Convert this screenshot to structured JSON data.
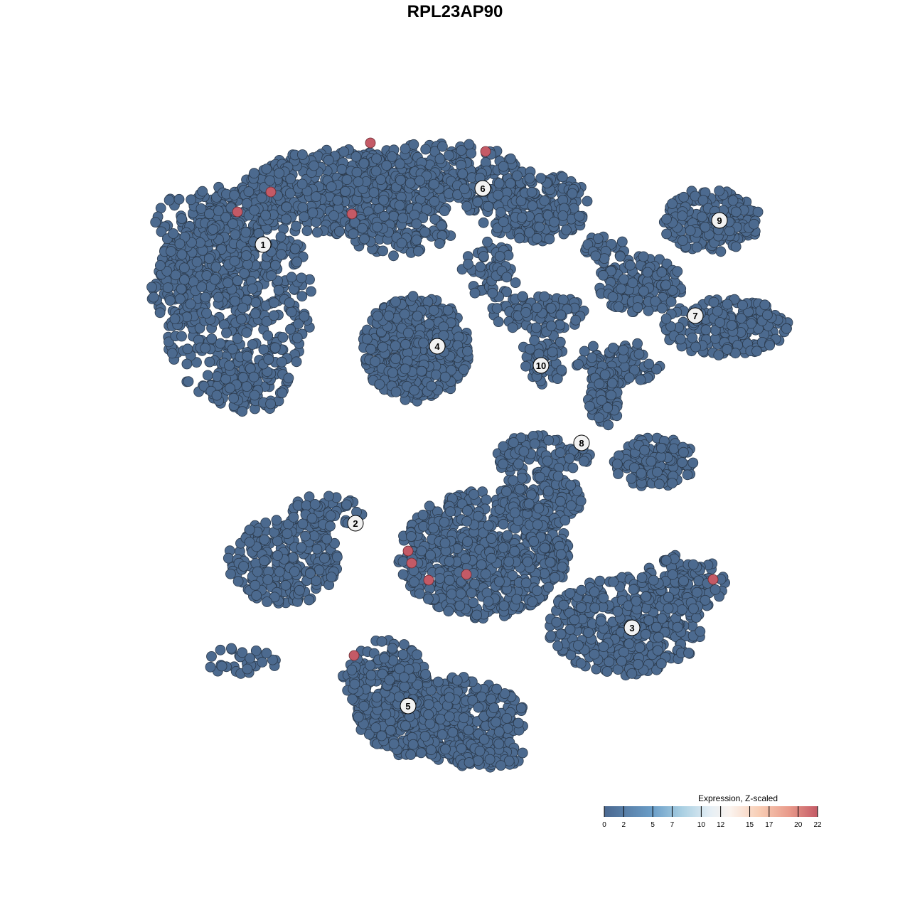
{
  "chart_data": {
    "type": "scatter",
    "title": "RPL23AP90",
    "xlabel": "",
    "ylabel": "",
    "grid": false,
    "axes_visible": false,
    "point_color_low": "#4c6a8f",
    "point_color_high": "#c45a66",
    "clusters": [
      {
        "label": "1",
        "x": -27.0,
        "y": 29.6
      },
      {
        "label": "2",
        "x": -14.0,
        "y": -9.6
      },
      {
        "label": "3",
        "x": 24.9,
        "y": -24.3
      },
      {
        "label": "4",
        "x": -2.5,
        "y": 15.3
      },
      {
        "label": "5",
        "x": -6.6,
        "y": -35.3
      },
      {
        "label": "6",
        "x": 3.9,
        "y": 37.5
      },
      {
        "label": "7",
        "x": 33.8,
        "y": 19.6
      },
      {
        "label": "8",
        "x": 17.8,
        "y": 1.7
      },
      {
        "label": "9",
        "x": 37.2,
        "y": 33.0
      },
      {
        "label": "10",
        "x": 12.1,
        "y": 12.6
      }
    ],
    "high_expression_points": [
      {
        "x": -11.9,
        "y": 43.9,
        "value": 22
      },
      {
        "x": 4.3,
        "y": 42.7,
        "value": 22
      },
      {
        "x": -25.9,
        "y": 37.0,
        "value": 22
      },
      {
        "x": -30.6,
        "y": 34.2,
        "value": 22
      },
      {
        "x": -14.5,
        "y": 33.9,
        "value": 22
      },
      {
        "x": -6.6,
        "y": -13.5,
        "value": 22
      },
      {
        "x": -6.1,
        "y": -15.2,
        "value": 22
      },
      {
        "x": -3.7,
        "y": -17.6,
        "value": 22
      },
      {
        "x": 1.6,
        "y": -16.8,
        "value": 22
      },
      {
        "x": 36.3,
        "y": -17.5,
        "value": 22
      },
      {
        "x": -14.2,
        "y": -28.2,
        "value": 22
      }
    ],
    "legend": {
      "title": "Expression, Z-scaled",
      "placement": "bottom-right",
      "range": [
        0,
        22
      ],
      "ticks": [
        "0",
        "2",
        "5",
        "7",
        "10",
        "12",
        "15",
        "17",
        "20",
        "22"
      ],
      "stops": [
        {
          "value": 0,
          "color": "#4a6890"
        },
        {
          "value": 5,
          "color": "#6b9ec8"
        },
        {
          "value": 8,
          "color": "#a9cfe2"
        },
        {
          "value": 11,
          "color": "#e6eff5"
        },
        {
          "value": 13,
          "color": "#fbf3ee"
        },
        {
          "value": 16,
          "color": "#f8cdb4"
        },
        {
          "value": 19,
          "color": "#e99b8b"
        },
        {
          "value": 22,
          "color": "#c45a66"
        }
      ]
    }
  }
}
